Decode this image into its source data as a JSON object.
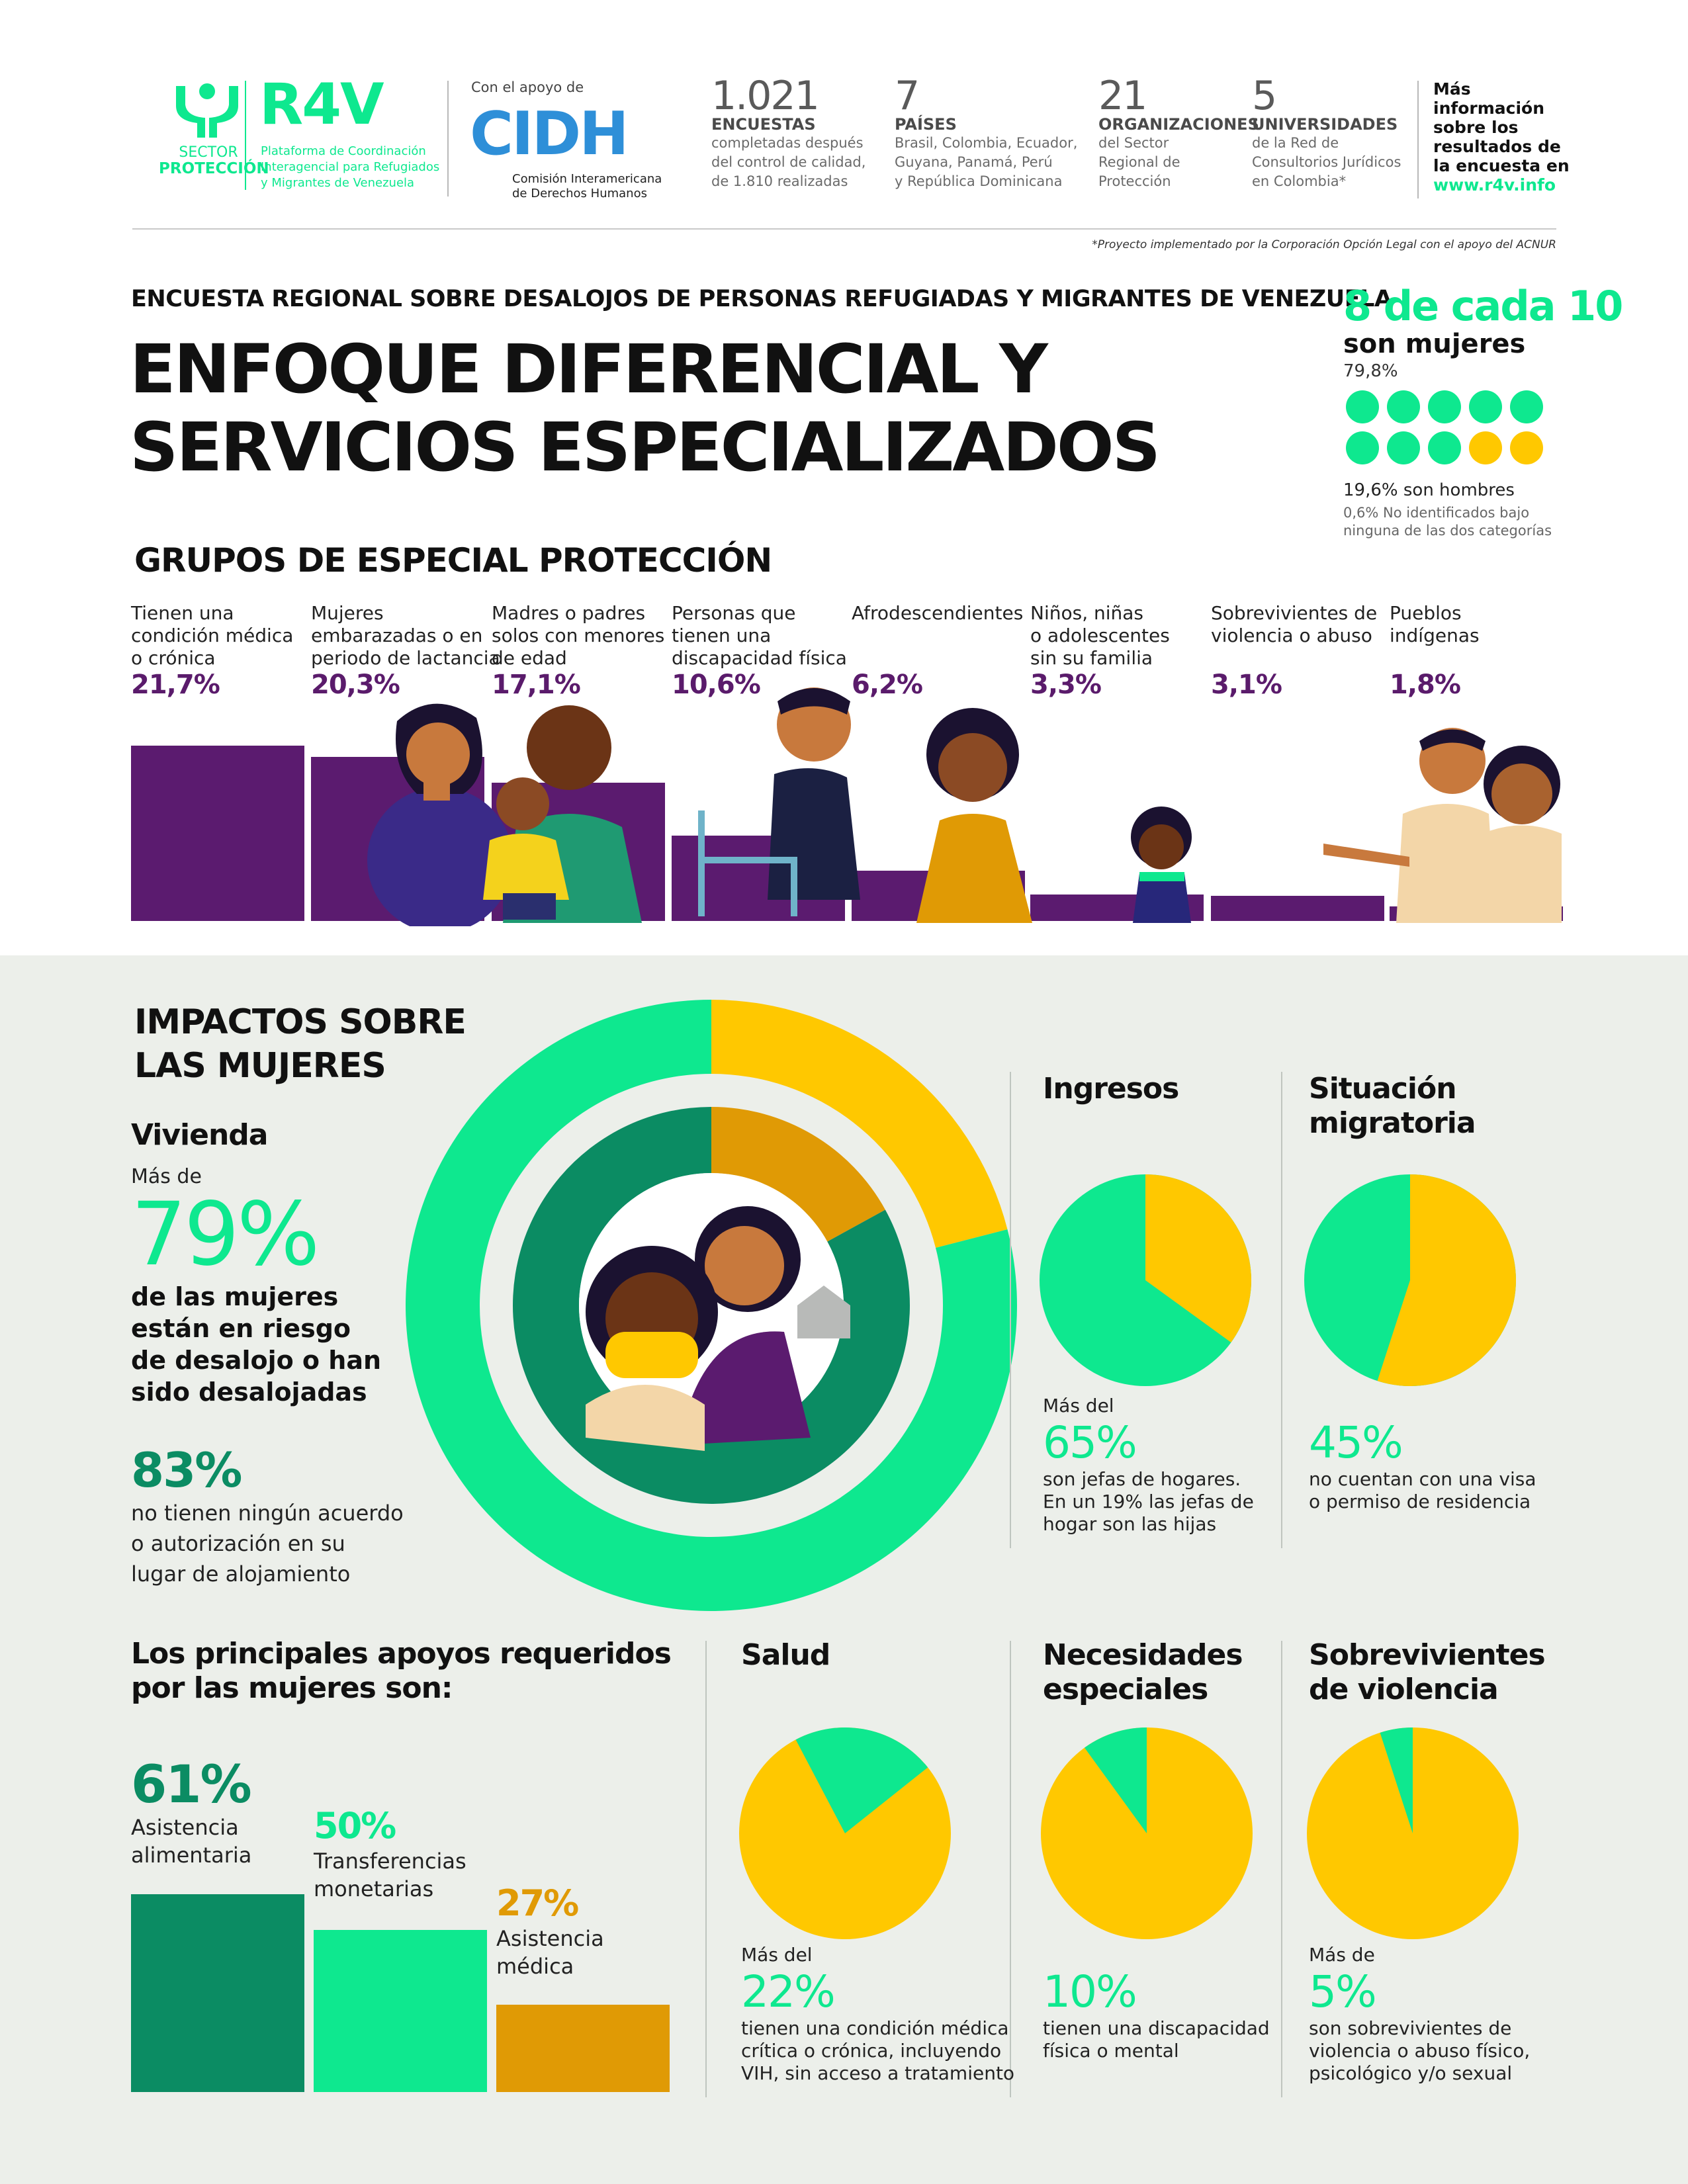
{
  "header": {
    "sector_logo": {
      "line1": "SECTOR",
      "line2": "PROTECCIÓN"
    },
    "r4v_logo": {
      "wordmark": "R4V",
      "line1": "Plataforma de Coordinación",
      "line2": "Interagencial para Refugiados",
      "line3": "y Migrantes de Venezuela"
    },
    "cidh": {
      "support": "Con el apoyo de",
      "wordmark": "CIDH",
      "line1": "Comisión Interamericana",
      "line2": "de Derechos Humanos"
    },
    "stats": [
      {
        "number": "1.021",
        "label": "ENCUESTAS",
        "sub": [
          "completadas después",
          "del control de calidad,",
          "de 1.810 realizadas"
        ]
      },
      {
        "number": "7",
        "label": "PAÍSES",
        "sub": [
          "Brasil, Colombia, Ecuador,",
          "Guyana, Panamá, Perú",
          "y República Dominicana"
        ]
      },
      {
        "number": "21",
        "label": "ORGANIZACIONES",
        "sub": [
          "del Sector",
          "Regional de",
          "Protección"
        ]
      },
      {
        "number": "5",
        "label": "UNIVERSIDADES",
        "sub": [
          "de la Red de",
          "Consultorios Jurídicos",
          "en Colombia*"
        ]
      }
    ],
    "more_info": [
      "Más",
      "información",
      "sobre los",
      "resultados de",
      "la encuesta en"
    ],
    "more_info_url": "www.r4v.info",
    "footnote": "*Proyecto implementado por la Corporación Opción Legal con el apoyo del ACNUR"
  },
  "title": {
    "kicker": "ENCUESTA REGIONAL SOBRE DESALOJOS DE PERSONAS REFUGIADAS Y MIGRANTES DE VENEZUELA",
    "line1": "ENFOQUE DIFERENCIAL Y",
    "line2": "SERVICIOS ESPECIALIZADOS"
  },
  "gender": {
    "headline": "8 de cada 10",
    "sub": "son mujeres",
    "pct": "79,8%",
    "men": "19,6% son hombres",
    "unidentified": [
      "0,6% No identificados bajo",
      "ninguna de las dos categorías"
    ],
    "dots": [
      "green",
      "green",
      "green",
      "green",
      "green",
      "green",
      "green",
      "green",
      "yellow",
      "yellow"
    ],
    "colors": {
      "green": "#0ee88f",
      "yellow": "#ffc800"
    }
  },
  "groups": {
    "title": "GRUPOS DE ESPECIAL PROTECCIÓN",
    "items": [
      {
        "label": [
          "Tienen una",
          "condición médica",
          "o crónica"
        ],
        "pct": "21,7%",
        "value": 21.7
      },
      {
        "label": [
          "Mujeres",
          "embarazadas o en",
          "periodo de lactancia"
        ],
        "pct": "20,3%",
        "value": 20.3
      },
      {
        "label": [
          "Madres o padres",
          "solos con menores",
          "de edad"
        ],
        "pct": "17,1%",
        "value": 17.1
      },
      {
        "label": [
          "Personas que",
          "tienen una",
          "discapacidad física"
        ],
        "pct": "10,6%",
        "value": 10.6
      },
      {
        "label": [
          "Afrodescendientes"
        ],
        "pct": "6,2%",
        "value": 6.2
      },
      {
        "label": [
          "Niños, niñas",
          "o adolescentes",
          "sin su familia"
        ],
        "pct": "3,3%",
        "value": 3.3
      },
      {
        "label": [
          "Sobrevivientes de",
          "violencia o abuso"
        ],
        "pct": "3,1%",
        "value": 3.1
      },
      {
        "label": [
          "Pueblos",
          "indígenas"
        ],
        "pct": "1,8%",
        "value": 1.8
      }
    ]
  },
  "impacts": {
    "title": [
      "IMPACTOS SOBRE",
      "LAS MUJERES"
    ],
    "vivienda": {
      "title": "Vivienda",
      "prefix": "Más de",
      "pct": "79%",
      "desc": [
        "de las mujeres",
        "están en riesgo",
        "de desalojo o han",
        "sido desalojadas"
      ],
      "pct2": "83%",
      "desc2": [
        "no tienen ningún acuerdo",
        "o autorización en su",
        "lugar de alojamiento"
      ],
      "outer_ring_value": 79,
      "inner_ring_value": 83
    },
    "ingresos": {
      "title": "Ingresos",
      "prefix": "Más del",
      "pct": "65%",
      "value": 65,
      "desc": [
        "son jefas de hogares.",
        "En un 19% las jefas de",
        "hogar son las hijas"
      ]
    },
    "migratoria": {
      "title": [
        "Situación",
        "migratoria"
      ],
      "prefix": "",
      "pct": "45%",
      "value": 45,
      "desc": [
        "no cuentan con una visa",
        "o permiso de residencia"
      ]
    }
  },
  "support": {
    "title": [
      "Los principales apoyos requeridos",
      "por las mujeres son:"
    ],
    "items": [
      {
        "pct": "61%",
        "value": 61,
        "label": [
          "Asistencia",
          "alimentaria"
        ],
        "color": "#0b8c63"
      },
      {
        "pct": "50%",
        "value": 50,
        "label": [
          "Transferencias",
          "monetarias"
        ],
        "color": "#0ee88f"
      },
      {
        "pct": "27%",
        "value": 27,
        "label": [
          "Asistencia",
          "médica"
        ],
        "color": "#e09a05"
      }
    ]
  },
  "needs": [
    {
      "title": [
        "Salud"
      ],
      "prefix": "Más del",
      "pct": "22%",
      "value": 22,
      "desc": [
        "tienen una condición médica",
        "crítica o crónica, incluyendo",
        "VIH, sin acceso a tratamiento"
      ]
    },
    {
      "title": [
        "Necesidades",
        "especiales"
      ],
      "prefix": "",
      "pct": "10%",
      "value": 10,
      "desc": [
        "tienen una discapacidad",
        "física o mental"
      ]
    },
    {
      "title": [
        "Sobrevivientes",
        "de violencia"
      ],
      "prefix": "Más de",
      "pct": "5%",
      "value": 5,
      "desc": [
        "son sobrevivientes de",
        "violencia o abuso físico,",
        "psicológico y/o sexual"
      ]
    }
  ],
  "colors": {
    "green": "#0ee88f",
    "yellow": "#ffc800",
    "purple": "#5b1b6f",
    "dark_green": "#0b8c63",
    "orange": "#e09a05",
    "panel_bg": "#ecefea"
  }
}
